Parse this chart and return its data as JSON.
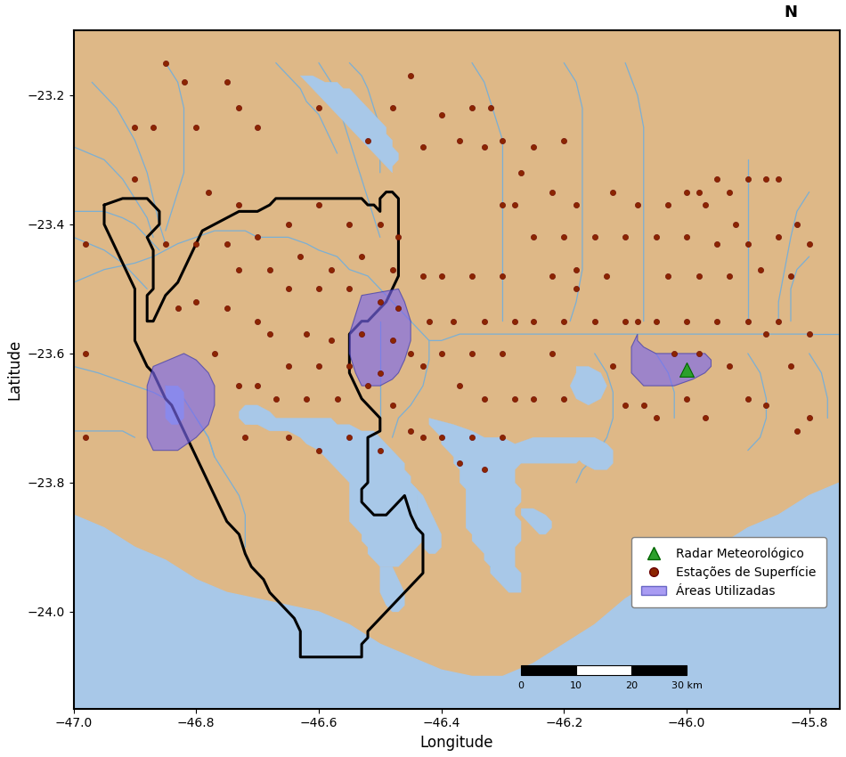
{
  "background_color": "#DEB887",
  "water_color": "#A8C8E8",
  "fig_bg": "#FFFFFF",
  "map_boundary": [
    -47.0,
    -45.75,
    -24.15,
    -23.1
  ],
  "xlabel": "Longitude",
  "ylabel": "Latitude",
  "river_color": "#7BAFD4",
  "station_color": "#8B2500",
  "station_edge": "#6B0000",
  "radar_color": "#2ca02c",
  "boundary_color": "#000000",
  "boundary_lw": 2.2,
  "xticks": [
    -47.0,
    -46.8,
    -46.6,
    -46.4,
    -46.2,
    -46.0,
    -45.8
  ],
  "yticks": [
    -23.2,
    -23.4,
    -23.6,
    -23.8,
    -24.0
  ],
  "radar_station": [
    -46.0,
    -23.625
  ],
  "study_areas_color": "#7B68EE",
  "study_areas_alpha": 0.65,
  "surface_stations": [
    [
      -46.98,
      -23.43
    ],
    [
      -46.98,
      -23.6
    ],
    [
      -46.98,
      -23.73
    ],
    [
      -46.9,
      -23.33
    ],
    [
      -46.87,
      -23.25
    ],
    [
      -46.85,
      -23.43
    ],
    [
      -46.83,
      -23.53
    ],
    [
      -46.8,
      -23.43
    ],
    [
      -46.8,
      -23.52
    ],
    [
      -46.78,
      -23.35
    ],
    [
      -46.77,
      -23.6
    ],
    [
      -46.75,
      -23.43
    ],
    [
      -46.75,
      -23.53
    ],
    [
      -46.73,
      -23.22
    ],
    [
      -46.73,
      -23.37
    ],
    [
      -46.73,
      -23.47
    ],
    [
      -46.73,
      -23.65
    ],
    [
      -46.72,
      -23.73
    ],
    [
      -46.7,
      -23.42
    ],
    [
      -46.7,
      -23.55
    ],
    [
      -46.7,
      -23.65
    ],
    [
      -46.68,
      -23.47
    ],
    [
      -46.68,
      -23.57
    ],
    [
      -46.67,
      -23.67
    ],
    [
      -46.65,
      -23.4
    ],
    [
      -46.65,
      -23.5
    ],
    [
      -46.65,
      -23.62
    ],
    [
      -46.65,
      -23.73
    ],
    [
      -46.63,
      -23.45
    ],
    [
      -46.62,
      -23.57
    ],
    [
      -46.62,
      -23.67
    ],
    [
      -46.6,
      -23.37
    ],
    [
      -46.6,
      -23.5
    ],
    [
      -46.6,
      -23.62
    ],
    [
      -46.6,
      -23.75
    ],
    [
      -46.58,
      -23.47
    ],
    [
      -46.58,
      -23.58
    ],
    [
      -46.57,
      -23.67
    ],
    [
      -46.55,
      -23.4
    ],
    [
      -46.55,
      -23.5
    ],
    [
      -46.55,
      -23.62
    ],
    [
      -46.55,
      -23.73
    ],
    [
      -46.53,
      -23.45
    ],
    [
      -46.53,
      -23.57
    ],
    [
      -46.52,
      -23.65
    ],
    [
      -46.5,
      -23.4
    ],
    [
      -46.5,
      -23.52
    ],
    [
      -46.5,
      -23.63
    ],
    [
      -46.5,
      -23.75
    ],
    [
      -46.48,
      -23.47
    ],
    [
      -46.48,
      -23.58
    ],
    [
      -46.48,
      -23.68
    ],
    [
      -46.47,
      -23.42
    ],
    [
      -46.47,
      -23.53
    ],
    [
      -46.45,
      -23.6
    ],
    [
      -46.45,
      -23.72
    ],
    [
      -46.43,
      -23.48
    ],
    [
      -46.43,
      -23.62
    ],
    [
      -46.43,
      -23.73
    ],
    [
      -46.42,
      -23.55
    ],
    [
      -46.4,
      -23.48
    ],
    [
      -46.4,
      -23.6
    ],
    [
      -46.4,
      -23.73
    ],
    [
      -46.38,
      -23.55
    ],
    [
      -46.37,
      -23.65
    ],
    [
      -46.37,
      -23.77
    ],
    [
      -46.35,
      -23.48
    ],
    [
      -46.35,
      -23.6
    ],
    [
      -46.35,
      -23.73
    ],
    [
      -46.33,
      -23.55
    ],
    [
      -46.33,
      -23.67
    ],
    [
      -46.33,
      -23.78
    ],
    [
      -46.32,
      -23.22
    ],
    [
      -46.3,
      -23.37
    ],
    [
      -46.3,
      -23.48
    ],
    [
      -46.3,
      -23.6
    ],
    [
      -46.3,
      -23.73
    ],
    [
      -46.28,
      -23.37
    ],
    [
      -46.28,
      -23.55
    ],
    [
      -46.28,
      -23.67
    ],
    [
      -46.25,
      -23.28
    ],
    [
      -46.25,
      -23.42
    ],
    [
      -46.25,
      -23.55
    ],
    [
      -46.25,
      -23.67
    ],
    [
      -46.22,
      -23.35
    ],
    [
      -46.22,
      -23.48
    ],
    [
      -46.22,
      -23.6
    ],
    [
      -46.2,
      -23.42
    ],
    [
      -46.2,
      -23.55
    ],
    [
      -46.2,
      -23.67
    ],
    [
      -46.18,
      -23.37
    ],
    [
      -46.18,
      -23.5
    ],
    [
      -46.15,
      -23.42
    ],
    [
      -46.15,
      -23.55
    ],
    [
      -46.13,
      -23.48
    ],
    [
      -46.12,
      -23.62
    ],
    [
      -46.1,
      -23.42
    ],
    [
      -46.1,
      -23.55
    ],
    [
      -46.1,
      -23.68
    ],
    [
      -46.08,
      -23.55
    ],
    [
      -46.07,
      -23.68
    ],
    [
      -46.05,
      -23.42
    ],
    [
      -46.05,
      -23.55
    ],
    [
      -46.05,
      -23.7
    ],
    [
      -46.03,
      -23.48
    ],
    [
      -46.02,
      -23.6
    ],
    [
      -46.0,
      -23.42
    ],
    [
      -46.0,
      -23.55
    ],
    [
      -46.0,
      -23.67
    ],
    [
      -45.98,
      -23.48
    ],
    [
      -45.98,
      -23.6
    ],
    [
      -45.97,
      -23.37
    ],
    [
      -45.97,
      -23.7
    ],
    [
      -45.95,
      -23.43
    ],
    [
      -45.95,
      -23.55
    ],
    [
      -45.93,
      -23.48
    ],
    [
      -45.93,
      -23.62
    ],
    [
      -45.92,
      -23.4
    ],
    [
      -45.9,
      -23.43
    ],
    [
      -45.9,
      -23.55
    ],
    [
      -45.9,
      -23.67
    ],
    [
      -45.88,
      -23.47
    ],
    [
      -45.87,
      -23.57
    ],
    [
      -45.87,
      -23.68
    ],
    [
      -45.85,
      -23.42
    ],
    [
      -45.85,
      -23.55
    ],
    [
      -45.83,
      -23.48
    ],
    [
      -45.83,
      -23.62
    ],
    [
      -45.82,
      -23.72
    ],
    [
      -45.8,
      -23.43
    ],
    [
      -45.8,
      -23.57
    ],
    [
      -45.8,
      -23.7
    ],
    [
      -46.45,
      -23.17
    ],
    [
      -46.35,
      -23.22
    ],
    [
      -46.48,
      -23.22
    ],
    [
      -46.2,
      -23.27
    ],
    [
      -46.18,
      -23.47
    ],
    [
      -46.12,
      -23.35
    ],
    [
      -46.08,
      -23.37
    ],
    [
      -46.03,
      -23.37
    ],
    [
      -46.0,
      -23.35
    ],
    [
      -45.98,
      -23.35
    ],
    [
      -45.95,
      -23.33
    ],
    [
      -45.93,
      -23.35
    ],
    [
      -45.9,
      -23.33
    ],
    [
      -45.87,
      -23.33
    ],
    [
      -45.85,
      -23.33
    ],
    [
      -45.82,
      -23.4
    ],
    [
      -46.9,
      -23.25
    ],
    [
      -46.85,
      -23.15
    ],
    [
      -46.82,
      -23.18
    ],
    [
      -46.8,
      -23.25
    ],
    [
      -46.75,
      -23.18
    ],
    [
      -46.7,
      -23.25
    ],
    [
      -46.6,
      -23.22
    ],
    [
      -46.52,
      -23.27
    ],
    [
      -46.43,
      -23.28
    ],
    [
      -46.4,
      -23.23
    ],
    [
      -46.37,
      -23.27
    ],
    [
      -46.33,
      -23.28
    ],
    [
      -46.3,
      -23.27
    ],
    [
      -46.27,
      -23.32
    ]
  ]
}
